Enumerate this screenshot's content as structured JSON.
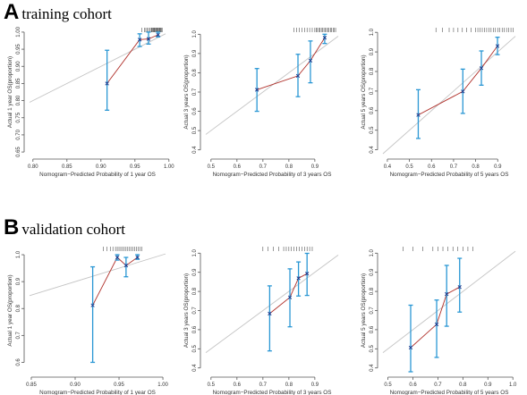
{
  "sections": [
    {
      "letter": "A",
      "title": "training cohort"
    },
    {
      "letter": "B",
      "title": "validation cohort"
    }
  ],
  "colors": {
    "errorbar": "#2a97d4",
    "curve": "#b0302a",
    "ideal": "#c4c4c4",
    "point": "#1f3b8c",
    "rug": "#333333"
  },
  "chart_data": [
    {
      "type": "line",
      "section": "A",
      "xlabel": "Nomogram−Predicted Probability of 1 year OS",
      "ylabel": "Actual 1 year OS(proportion)",
      "xlim": [
        0.795,
        0.995
      ],
      "ylim": [
        0.645,
        1.005
      ],
      "xticks": [
        "0.80",
        "0.85",
        "0.90",
        "0.95",
        "1.00"
      ],
      "yticks": [
        "0.65",
        "0.70",
        "0.75",
        "0.80",
        "0.85",
        "0.90",
        "0.95",
        "1.00"
      ],
      "x": [
        0.909,
        0.957,
        0.97,
        0.984
      ],
      "y": [
        0.85,
        0.978,
        0.98,
        0.992
      ],
      "lower": [
        0.772,
        0.958,
        0.965,
        0.986
      ],
      "upper": [
        0.947,
        0.995,
        1.0,
        1.0
      ],
      "rug": [
        0.96,
        0.964,
        0.966,
        0.968,
        0.97,
        0.972,
        0.974,
        0.975,
        0.976,
        0.977,
        0.978,
        0.979,
        0.98,
        0.981,
        0.982,
        0.983,
        0.984,
        0.985,
        0.986,
        0.987,
        0.988,
        0.989,
        0.99
      ]
    },
    {
      "type": "line",
      "section": "A",
      "xlabel": "Nomogram−Predicted Probability of 3 years OS",
      "ylabel": "Actual 3 years OS(proportion)",
      "xlim": [
        0.48,
        0.99
      ],
      "ylim": [
        0.38,
        1.02
      ],
      "xticks": [
        "0.5",
        "0.6",
        "0.7",
        "0.8",
        "0.9"
      ],
      "yticks": [
        "0.4",
        "0.5",
        "0.6",
        "0.7",
        "0.8",
        "0.9",
        "1.0"
      ],
      "x": [
        0.677,
        0.835,
        0.883,
        0.938
      ],
      "y": [
        0.712,
        0.784,
        0.863,
        0.982
      ],
      "lower": [
        0.6,
        0.676,
        0.748,
        0.952
      ],
      "upper": [
        0.822,
        0.896,
        0.965,
        1.0
      ],
      "rug": [
        0.82,
        0.83,
        0.84,
        0.85,
        0.86,
        0.87,
        0.88,
        0.89,
        0.9,
        0.905,
        0.91,
        0.915,
        0.92,
        0.925,
        0.93,
        0.935,
        0.94,
        0.945,
        0.95,
        0.955,
        0.96,
        0.965,
        0.97,
        0.975,
        0.98
      ]
    },
    {
      "type": "line",
      "section": "A",
      "xlabel": "Nomogram−Predicted Probability of 5 years OS",
      "ylabel": "Actual 5 years OS(proportion)",
      "xlim": [
        0.38,
        0.98
      ],
      "ylim": [
        0.38,
        1.01
      ],
      "xticks": [
        "0.4",
        "0.5",
        "0.6",
        "0.7",
        "0.8",
        "0.9"
      ],
      "yticks": [
        "0.4",
        "0.5",
        "0.6",
        "0.7",
        "0.8",
        "0.9",
        "1.0"
      ],
      "x": [
        0.54,
        0.742,
        0.826,
        0.899
      ],
      "y": [
        0.578,
        0.698,
        0.817,
        0.93
      ],
      "lower": [
        0.458,
        0.586,
        0.73,
        0.886
      ],
      "upper": [
        0.707,
        0.812,
        0.905,
        0.975
      ],
      "rug": [
        0.62,
        0.65,
        0.68,
        0.7,
        0.72,
        0.74,
        0.76,
        0.78,
        0.8,
        0.81,
        0.82,
        0.83,
        0.84,
        0.85,
        0.86,
        0.87,
        0.88,
        0.89,
        0.9,
        0.91,
        0.92,
        0.93,
        0.94,
        0.95,
        0.96,
        0.97
      ]
    },
    {
      "type": "line",
      "section": "B",
      "xlabel": "Nomogram−Predicted Probability of 1 year OS",
      "ylabel": "Actual 1 year OS(proportion)",
      "xlim": [
        0.848,
        1.003
      ],
      "ylim": [
        0.565,
        1.02
      ],
      "xticks": [
        "0.85",
        "0.90",
        "0.95",
        "1.00"
      ],
      "yticks": [
        "0.6",
        "0.7",
        "0.8",
        "0.9",
        "1.0"
      ],
      "x": [
        0.92,
        0.948,
        0.958,
        0.971
      ],
      "y": [
        0.812,
        0.99,
        0.96,
        0.99
      ],
      "lower": [
        0.6,
        0.98,
        0.918,
        0.983
      ],
      "upper": [
        0.955,
        1.0,
        0.99,
        1.0
      ],
      "rug": [
        0.932,
        0.936,
        0.94,
        0.943,
        0.946,
        0.948,
        0.95,
        0.952,
        0.954,
        0.956,
        0.958,
        0.96,
        0.962,
        0.964,
        0.966,
        0.968,
        0.97,
        0.972,
        0.974,
        0.976
      ]
    },
    {
      "type": "line",
      "section": "B",
      "xlabel": "Nomogram−Predicted Probability of 3 years OS",
      "ylabel": "Actual 3 years OS(proportion)",
      "xlim": [
        0.48,
        0.99
      ],
      "ylim": [
        0.38,
        1.02
      ],
      "xticks": [
        "0.5",
        "0.6",
        "0.7",
        "0.8",
        "0.9"
      ],
      "yticks": [
        "0.4",
        "0.5",
        "0.6",
        "0.7",
        "0.8",
        "0.9",
        "1.0"
      ],
      "x": [
        0.726,
        0.804,
        0.837,
        0.87
      ],
      "y": [
        0.684,
        0.769,
        0.869,
        0.893
      ],
      "lower": [
        0.489,
        0.615,
        0.776,
        0.779
      ],
      "upper": [
        0.829,
        0.918,
        0.954,
        0.999
      ],
      "rug": [
        0.7,
        0.72,
        0.74,
        0.76,
        0.78,
        0.79,
        0.8,
        0.81,
        0.82,
        0.83,
        0.84,
        0.85,
        0.86,
        0.87,
        0.88,
        0.89
      ]
    },
    {
      "type": "line",
      "section": "B",
      "xlabel": "Nomogram−Predicted Probability of 5 years OS",
      "ylabel": "Actual 5 years OS(proportion)",
      "xlim": [
        0.48,
        1.01
      ],
      "ylim": [
        0.38,
        1.02
      ],
      "xticks": [
        "0.5",
        "0.6",
        "0.7",
        "0.8",
        "0.9",
        "1.0"
      ],
      "yticks": [
        "0.4",
        "0.5",
        "0.6",
        "0.7",
        "0.8",
        "0.9",
        "1.0"
      ],
      "x": [
        0.591,
        0.695,
        0.735,
        0.787
      ],
      "y": [
        0.506,
        0.628,
        0.786,
        0.823
      ],
      "lower": [
        0.376,
        0.455,
        0.618,
        0.692
      ],
      "upper": [
        0.728,
        0.755,
        0.936,
        0.973
      ],
      "rug": [
        0.56,
        0.6,
        0.64,
        0.68,
        0.7,
        0.72,
        0.74,
        0.76,
        0.78,
        0.8,
        0.82,
        0.84
      ]
    }
  ]
}
